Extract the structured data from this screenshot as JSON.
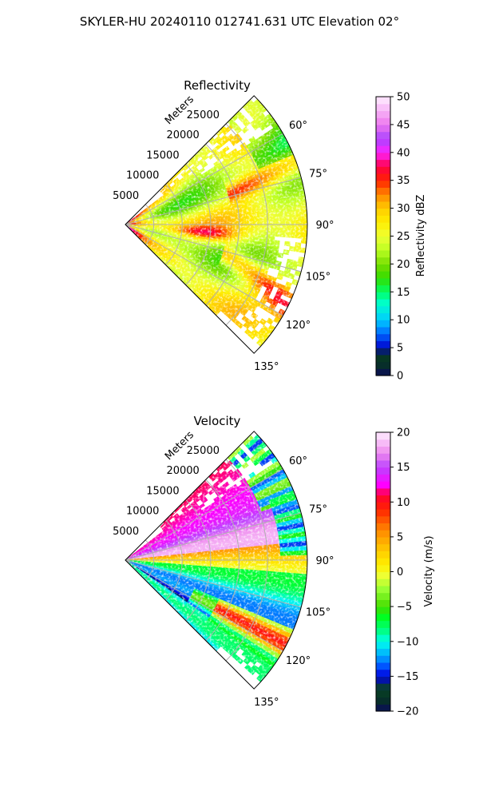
{
  "figure": {
    "title": "SKYLER-HU  20240110  012741.631 UTC Elevation 02°"
  },
  "chart_data": [
    {
      "type": "heatmap",
      "subtype": "polar-sector",
      "title": "Reflectivity",
      "range_axis_label": "Meters",
      "range_ticks": [
        "5000",
        "10000",
        "15000",
        "20000",
        "25000"
      ],
      "range_tick_values": [
        5000,
        10000,
        15000,
        20000,
        25000
      ],
      "range_max": 32000,
      "azimuth_ticks": [
        "60°",
        "75°",
        "90°",
        "105°",
        "120°",
        "135°"
      ],
      "azimuth_tick_values": [
        60,
        75,
        90,
        105,
        120,
        135
      ],
      "azimuth_range": [
        45,
        135
      ],
      "azimuth_convention": "clockwise-from-north",
      "grid": true,
      "field": "reflectivity",
      "colorbar": {
        "label": "Reflectivity dBZ",
        "vmin": 0,
        "vmax": 50,
        "ticks": [
          "0",
          "5",
          "10",
          "15",
          "20",
          "25",
          "30",
          "35",
          "40",
          "45",
          "50"
        ],
        "tick_values": [
          0,
          5,
          10,
          15,
          20,
          25,
          30,
          35,
          40,
          45,
          50
        ],
        "stops": [
          {
            "v": 0,
            "color": "#0a0a5a"
          },
          {
            "v": 2.5,
            "color": "#063a1a"
          },
          {
            "v": 4,
            "color": "#083030"
          },
          {
            "v": 5,
            "color": "#0000cc"
          },
          {
            "v": 7.5,
            "color": "#0066ff"
          },
          {
            "v": 10,
            "color": "#00ccff"
          },
          {
            "v": 13,
            "color": "#00ffcc"
          },
          {
            "v": 15,
            "color": "#00ff66"
          },
          {
            "v": 17.5,
            "color": "#33dd00"
          },
          {
            "v": 20,
            "color": "#77dd00"
          },
          {
            "v": 22.5,
            "color": "#bbff22"
          },
          {
            "v": 25,
            "color": "#eeff33"
          },
          {
            "v": 27.5,
            "color": "#ffee00"
          },
          {
            "v": 30,
            "color": "#ffcc00"
          },
          {
            "v": 32.5,
            "color": "#ff8800"
          },
          {
            "v": 35,
            "color": "#ff2200"
          },
          {
            "v": 37.5,
            "color": "#ff0044"
          },
          {
            "v": 40,
            "color": "#ff22ff"
          },
          {
            "v": 42.5,
            "color": "#aa44ff"
          },
          {
            "v": 45,
            "color": "#ee77ee"
          },
          {
            "v": 50,
            "color": "#ffeeff"
          }
        ]
      }
    },
    {
      "type": "heatmap",
      "subtype": "polar-sector",
      "title": "Velocity",
      "range_axis_label": "Meters",
      "range_ticks": [
        "5000",
        "10000",
        "15000",
        "20000",
        "25000"
      ],
      "range_tick_values": [
        5000,
        10000,
        15000,
        20000,
        25000
      ],
      "range_max": 32000,
      "azimuth_ticks": [
        "60°",
        "75°",
        "90°",
        "105°",
        "120°",
        "135°"
      ],
      "azimuth_tick_values": [
        60,
        75,
        90,
        105,
        120,
        135
      ],
      "azimuth_range": [
        45,
        135
      ],
      "azimuth_convention": "clockwise-from-north",
      "grid": true,
      "field": "velocity",
      "colorbar": {
        "label": "Velocity (m/s)",
        "vmin": -20,
        "vmax": 20,
        "ticks": [
          "−20",
          "−15",
          "−10",
          "−5",
          "0",
          "5",
          "10",
          "15",
          "20"
        ],
        "tick_values": [
          -20,
          -15,
          -10,
          -5,
          0,
          5,
          10,
          15,
          20
        ],
        "stops": [
          {
            "v": -20,
            "color": "#0a0a5a"
          },
          {
            "v": -18,
            "color": "#063a1a"
          },
          {
            "v": -16.5,
            "color": "#083a3a"
          },
          {
            "v": -15,
            "color": "#0000dd"
          },
          {
            "v": -13.5,
            "color": "#0055ff"
          },
          {
            "v": -12,
            "color": "#00aaff"
          },
          {
            "v": -10,
            "color": "#00ffee"
          },
          {
            "v": -8.5,
            "color": "#00ff88"
          },
          {
            "v": -6.5,
            "color": "#00ff22"
          },
          {
            "v": -5,
            "color": "#44dd00"
          },
          {
            "v": -2.5,
            "color": "#99ff33"
          },
          {
            "v": -0.5,
            "color": "#eeff33"
          },
          {
            "v": 1,
            "color": "#ffee00"
          },
          {
            "v": 3,
            "color": "#ffcc00"
          },
          {
            "v": 6,
            "color": "#ff8800"
          },
          {
            "v": 9,
            "color": "#ff2200"
          },
          {
            "v": 11,
            "color": "#ff0033"
          },
          {
            "v": 12.5,
            "color": "#ff00ff"
          },
          {
            "v": 15,
            "color": "#bb44ff"
          },
          {
            "v": 17,
            "color": "#ee88ee"
          },
          {
            "v": 20,
            "color": "#ffeeff"
          }
        ]
      }
    }
  ]
}
